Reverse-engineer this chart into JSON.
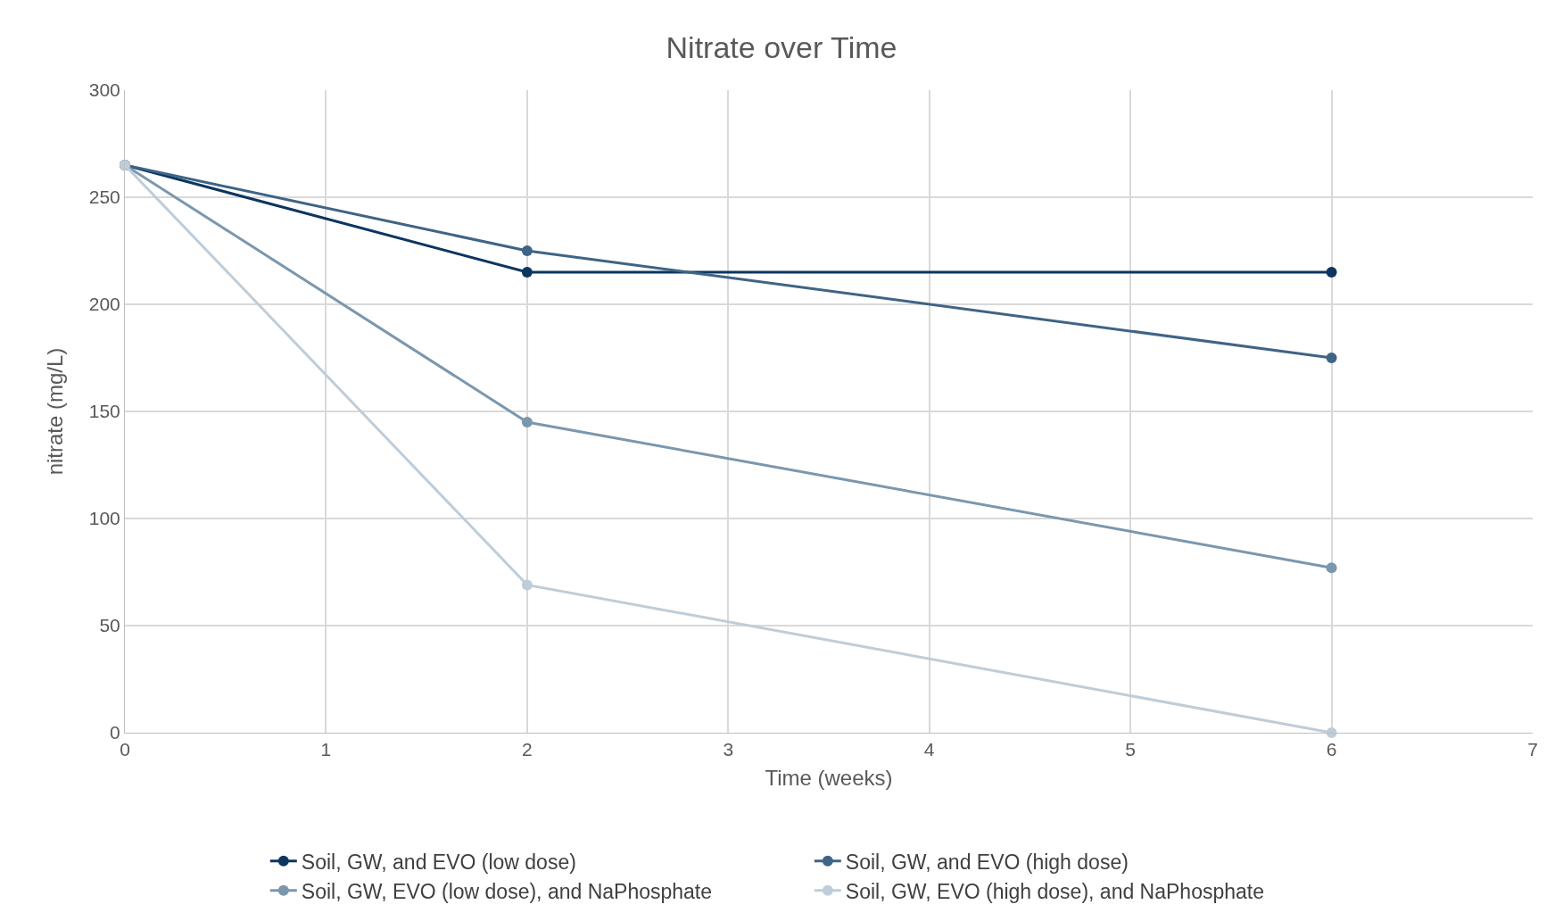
{
  "chart_data": {
    "type": "line",
    "title": "Nitrate over Time",
    "xlabel": "Time (weeks)",
    "ylabel": "nitrate (mg/L)",
    "x": [
      0,
      2,
      6
    ],
    "series": [
      {
        "name": "Soil, GW, and EVO (low dose)",
        "color": "#0c3561",
        "values": [
          265,
          215,
          215
        ]
      },
      {
        "name": "Soil, GW, and EVO (high dose)",
        "color": "#3e6486",
        "values": [
          265,
          225,
          175
        ]
      },
      {
        "name": "Soil, GW, EVO (low dose), and NaPhosphate",
        "color": "#7b97ad",
        "values": [
          265,
          145,
          77
        ]
      },
      {
        "name": "Soil, GW, EVO (high dose), and NaPhosphate",
        "color": "#bfcdd8",
        "values": [
          265,
          69,
          0
        ]
      }
    ],
    "xlim": [
      0,
      7
    ],
    "xticks": [
      0,
      1,
      2,
      3,
      4,
      5,
      6,
      7
    ],
    "ylim": [
      0,
      300
    ],
    "yticks": [
      0,
      50,
      100,
      150,
      200,
      250,
      300
    ],
    "grid": true,
    "legend": "bottom",
    "marker": "circle",
    "line_style": "solid"
  }
}
